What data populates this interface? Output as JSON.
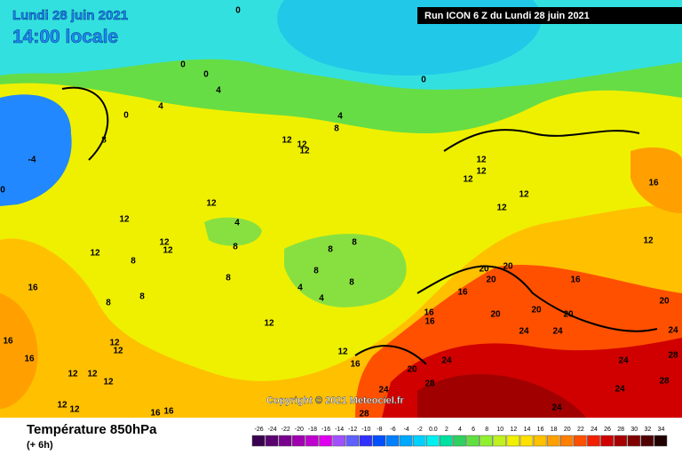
{
  "header": {
    "date": "Lundi 28 juin 2021",
    "time": "14:00 locale",
    "run": "Run ICON 6 Z du Lundi 28 juin 2021"
  },
  "map": {
    "labels": [
      "0",
      "0",
      "0",
      "4",
      "0",
      "4",
      "0",
      "4",
      "8",
      "12",
      "12",
      "12",
      "8",
      "-4",
      "0",
      "12",
      "12",
      "4",
      "8",
      "12",
      "12",
      "12",
      "8",
      "16",
      "8",
      "8",
      "8",
      "8",
      "8",
      "8",
      "8",
      "4",
      "4",
      "12",
      "12",
      "12",
      "12",
      "16",
      "16",
      "12",
      "12",
      "12",
      "12",
      "12",
      "16",
      "16",
      "16",
      "20",
      "24",
      "24",
      "28",
      "28",
      "24",
      "24",
      "28",
      "24",
      "28",
      "24",
      "20",
      "16",
      "12",
      "16",
      "20",
      "24",
      "20",
      "24",
      "20",
      "20",
      "20",
      "20",
      "16",
      "16",
      "16",
      "12",
      "12",
      "12",
      "12",
      "12"
    ]
  },
  "copyright": "Copyright © 2021 Meteociel.fr",
  "footer": {
    "title": "Température 850hPa",
    "step": "(+ 6h)"
  },
  "scale": {
    "labels": [
      "-26",
      "-24",
      "-22",
      "-20",
      "-18",
      "-16",
      "-14",
      "-12",
      "-10",
      "-8",
      "-6",
      "-4",
      "-2",
      "0.0",
      "2",
      "4",
      "6",
      "8",
      "10",
      "12",
      "14",
      "16",
      "18",
      "20",
      "22",
      "24",
      "26",
      "28",
      "30",
      "32",
      "34"
    ],
    "colors": [
      "#3a0050",
      "#5a0070",
      "#7a0090",
      "#a000b0",
      "#c000d0",
      "#e000f0",
      "#a050ff",
      "#6060ff",
      "#3030ff",
      "#0050ff",
      "#0080ff",
      "#00a8ff",
      "#00d0ff",
      "#00f0f0",
      "#00e0a0",
      "#30d060",
      "#60e040",
      "#90f030",
      "#c0f020",
      "#f0f000",
      "#ffe000",
      "#ffc000",
      "#ffa000",
      "#ff8000",
      "#ff5000",
      "#f02000",
      "#d00000",
      "#a80000",
      "#800000",
      "#500000",
      "#200000"
    ]
  }
}
